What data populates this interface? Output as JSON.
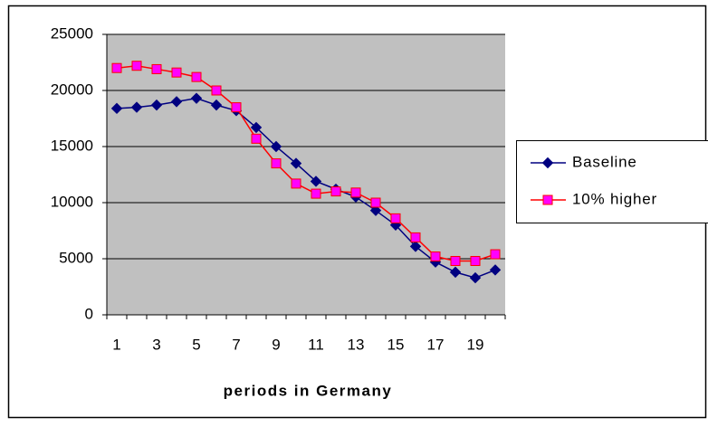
{
  "chart_data": {
    "type": "line",
    "x_label": "periods in Germany",
    "categories": [
      1,
      null,
      3,
      null,
      5,
      null,
      7,
      null,
      9,
      null,
      11,
      null,
      13,
      null,
      15,
      null,
      17,
      null,
      19,
      null
    ],
    "series": [
      {
        "name": "Baseline",
        "color": "#000080",
        "marker": "diamond",
        "marker_color": "#000080",
        "values": [
          18400,
          18500,
          18700,
          19000,
          19300,
          18700,
          18200,
          16700,
          15000,
          13500,
          11900,
          11200,
          10500,
          9300,
          8000,
          6100,
          4700,
          3800,
          3300,
          4000
        ]
      },
      {
        "name": "10% higher",
        "color": "#ff0000",
        "marker": "square",
        "marker_color": "#ff00ff",
        "values": [
          22000,
          22200,
          21900,
          21600,
          21200,
          20000,
          18500,
          15700,
          13500,
          11700,
          10800,
          11000,
          10900,
          10000,
          8600,
          6900,
          5200,
          4800,
          4800,
          5400
        ]
      }
    ],
    "ylim": [
      0,
      25000
    ],
    "yticks": [
      0,
      5000,
      10000,
      15000,
      20000,
      25000
    ],
    "grid": true,
    "plot_background": "#c0c0c0",
    "legend": "right"
  }
}
